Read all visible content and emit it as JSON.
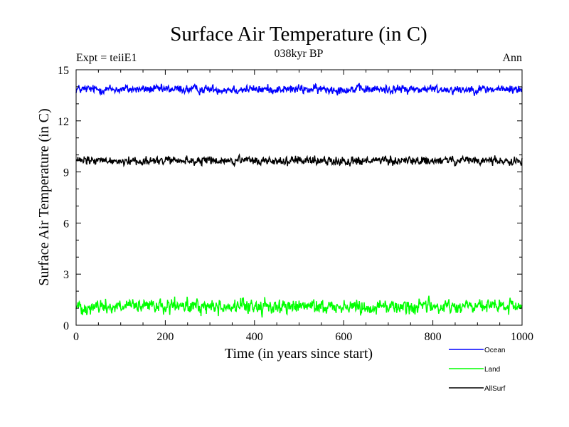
{
  "chart_data": {
    "type": "line",
    "title": "Surface Air Temperature (in C)",
    "subtitle": "038kyr BP",
    "top_left_label": "Expt = teiiE1",
    "top_right_label": "Ann",
    "xlabel": "Time (in years since start)",
    "ylabel": "Surface Air Temperature (in C)",
    "xlim": [
      0,
      1000
    ],
    "ylim": [
      0,
      15
    ],
    "x_ticks": [
      0,
      200,
      400,
      600,
      800,
      1000
    ],
    "y_ticks": [
      0,
      3,
      6,
      9,
      12,
      15
    ],
    "grid": false,
    "legend_position": "bottom-right, below plot",
    "series": [
      {
        "name": "Ocean",
        "color": "#0000ff",
        "mean": 13.85,
        "amplitude": 0.12
      },
      {
        "name": "Land",
        "color": "#00ff00",
        "mean": 1.1,
        "amplitude": 0.2
      },
      {
        "name": "AllSurf",
        "color": "#000000",
        "mean": 9.65,
        "amplitude": 0.12
      }
    ]
  }
}
